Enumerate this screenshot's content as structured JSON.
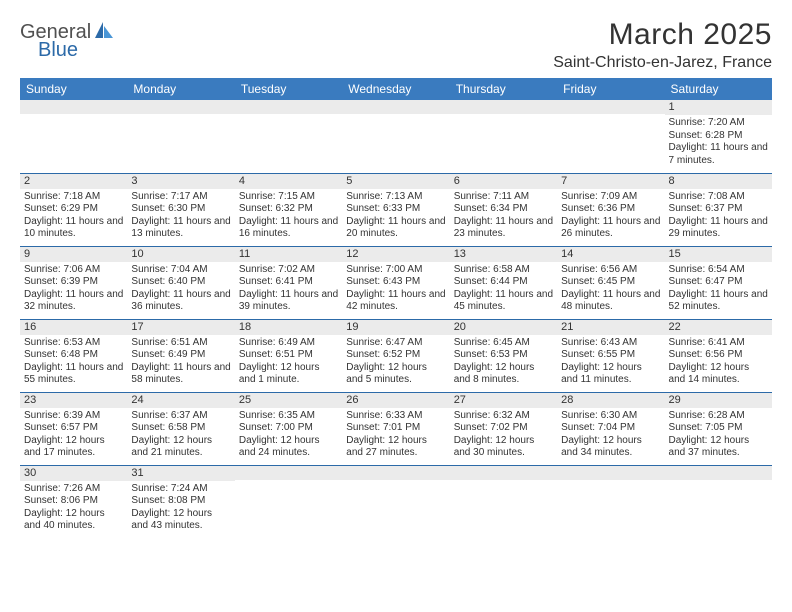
{
  "logo": {
    "text1": "General",
    "text2": "Blue"
  },
  "title": "March 2025",
  "location": "Saint-Christo-en-Jarez, France",
  "colors": {
    "header_bg": "#3a7bbf",
    "header_fg": "#ffffff",
    "border": "#2c6aa8",
    "daynum_bg": "#ebebeb",
    "text": "#333333",
    "logo_blue": "#2c6aa8",
    "logo_gray": "#505050"
  },
  "weekdays": [
    "Sunday",
    "Monday",
    "Tuesday",
    "Wednesday",
    "Thursday",
    "Friday",
    "Saturday"
  ],
  "weeks": [
    [
      null,
      null,
      null,
      null,
      null,
      null,
      {
        "n": "1",
        "sr": "Sunrise: 7:20 AM",
        "ss": "Sunset: 6:28 PM",
        "dl": "Daylight: 11 hours and 7 minutes."
      }
    ],
    [
      {
        "n": "2",
        "sr": "Sunrise: 7:18 AM",
        "ss": "Sunset: 6:29 PM",
        "dl": "Daylight: 11 hours and 10 minutes."
      },
      {
        "n": "3",
        "sr": "Sunrise: 7:17 AM",
        "ss": "Sunset: 6:30 PM",
        "dl": "Daylight: 11 hours and 13 minutes."
      },
      {
        "n": "4",
        "sr": "Sunrise: 7:15 AM",
        "ss": "Sunset: 6:32 PM",
        "dl": "Daylight: 11 hours and 16 minutes."
      },
      {
        "n": "5",
        "sr": "Sunrise: 7:13 AM",
        "ss": "Sunset: 6:33 PM",
        "dl": "Daylight: 11 hours and 20 minutes."
      },
      {
        "n": "6",
        "sr": "Sunrise: 7:11 AM",
        "ss": "Sunset: 6:34 PM",
        "dl": "Daylight: 11 hours and 23 minutes."
      },
      {
        "n": "7",
        "sr": "Sunrise: 7:09 AM",
        "ss": "Sunset: 6:36 PM",
        "dl": "Daylight: 11 hours and 26 minutes."
      },
      {
        "n": "8",
        "sr": "Sunrise: 7:08 AM",
        "ss": "Sunset: 6:37 PM",
        "dl": "Daylight: 11 hours and 29 minutes."
      }
    ],
    [
      {
        "n": "9",
        "sr": "Sunrise: 7:06 AM",
        "ss": "Sunset: 6:39 PM",
        "dl": "Daylight: 11 hours and 32 minutes."
      },
      {
        "n": "10",
        "sr": "Sunrise: 7:04 AM",
        "ss": "Sunset: 6:40 PM",
        "dl": "Daylight: 11 hours and 36 minutes."
      },
      {
        "n": "11",
        "sr": "Sunrise: 7:02 AM",
        "ss": "Sunset: 6:41 PM",
        "dl": "Daylight: 11 hours and 39 minutes."
      },
      {
        "n": "12",
        "sr": "Sunrise: 7:00 AM",
        "ss": "Sunset: 6:43 PM",
        "dl": "Daylight: 11 hours and 42 minutes."
      },
      {
        "n": "13",
        "sr": "Sunrise: 6:58 AM",
        "ss": "Sunset: 6:44 PM",
        "dl": "Daylight: 11 hours and 45 minutes."
      },
      {
        "n": "14",
        "sr": "Sunrise: 6:56 AM",
        "ss": "Sunset: 6:45 PM",
        "dl": "Daylight: 11 hours and 48 minutes."
      },
      {
        "n": "15",
        "sr": "Sunrise: 6:54 AM",
        "ss": "Sunset: 6:47 PM",
        "dl": "Daylight: 11 hours and 52 minutes."
      }
    ],
    [
      {
        "n": "16",
        "sr": "Sunrise: 6:53 AM",
        "ss": "Sunset: 6:48 PM",
        "dl": "Daylight: 11 hours and 55 minutes."
      },
      {
        "n": "17",
        "sr": "Sunrise: 6:51 AM",
        "ss": "Sunset: 6:49 PM",
        "dl": "Daylight: 11 hours and 58 minutes."
      },
      {
        "n": "18",
        "sr": "Sunrise: 6:49 AM",
        "ss": "Sunset: 6:51 PM",
        "dl": "Daylight: 12 hours and 1 minute."
      },
      {
        "n": "19",
        "sr": "Sunrise: 6:47 AM",
        "ss": "Sunset: 6:52 PM",
        "dl": "Daylight: 12 hours and 5 minutes."
      },
      {
        "n": "20",
        "sr": "Sunrise: 6:45 AM",
        "ss": "Sunset: 6:53 PM",
        "dl": "Daylight: 12 hours and 8 minutes."
      },
      {
        "n": "21",
        "sr": "Sunrise: 6:43 AM",
        "ss": "Sunset: 6:55 PM",
        "dl": "Daylight: 12 hours and 11 minutes."
      },
      {
        "n": "22",
        "sr": "Sunrise: 6:41 AM",
        "ss": "Sunset: 6:56 PM",
        "dl": "Daylight: 12 hours and 14 minutes."
      }
    ],
    [
      {
        "n": "23",
        "sr": "Sunrise: 6:39 AM",
        "ss": "Sunset: 6:57 PM",
        "dl": "Daylight: 12 hours and 17 minutes."
      },
      {
        "n": "24",
        "sr": "Sunrise: 6:37 AM",
        "ss": "Sunset: 6:58 PM",
        "dl": "Daylight: 12 hours and 21 minutes."
      },
      {
        "n": "25",
        "sr": "Sunrise: 6:35 AM",
        "ss": "Sunset: 7:00 PM",
        "dl": "Daylight: 12 hours and 24 minutes."
      },
      {
        "n": "26",
        "sr": "Sunrise: 6:33 AM",
        "ss": "Sunset: 7:01 PM",
        "dl": "Daylight: 12 hours and 27 minutes."
      },
      {
        "n": "27",
        "sr": "Sunrise: 6:32 AM",
        "ss": "Sunset: 7:02 PM",
        "dl": "Daylight: 12 hours and 30 minutes."
      },
      {
        "n": "28",
        "sr": "Sunrise: 6:30 AM",
        "ss": "Sunset: 7:04 PM",
        "dl": "Daylight: 12 hours and 34 minutes."
      },
      {
        "n": "29",
        "sr": "Sunrise: 6:28 AM",
        "ss": "Sunset: 7:05 PM",
        "dl": "Daylight: 12 hours and 37 minutes."
      }
    ],
    [
      {
        "n": "30",
        "sr": "Sunrise: 7:26 AM",
        "ss": "Sunset: 8:06 PM",
        "dl": "Daylight: 12 hours and 40 minutes."
      },
      {
        "n": "31",
        "sr": "Sunrise: 7:24 AM",
        "ss": "Sunset: 8:08 PM",
        "dl": "Daylight: 12 hours and 43 minutes."
      },
      null,
      null,
      null,
      null,
      null
    ]
  ]
}
